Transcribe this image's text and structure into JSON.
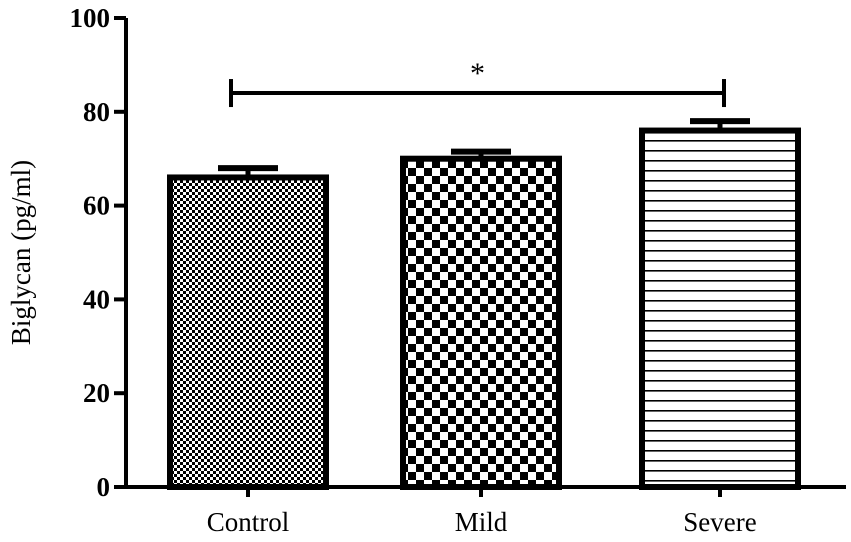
{
  "chart_data": {
    "type": "bar",
    "categories": [
      "Control",
      "Mild",
      "Severe"
    ],
    "values": [
      66,
      70,
      76
    ],
    "errors": [
      2,
      1.5,
      2
    ],
    "patterns": [
      "fine-check",
      "checker",
      "hlines"
    ],
    "ylabel": "Biglycan (pg/ml)",
    "ylim": [
      0,
      100
    ],
    "yticks": [
      0,
      20,
      40,
      60,
      80,
      100
    ],
    "grid": false,
    "significance": {
      "from": "Control",
      "to": "Severe",
      "y": 84,
      "label": "*"
    },
    "colors": {
      "stroke": "#000000",
      "fill": "#ffffff"
    }
  }
}
